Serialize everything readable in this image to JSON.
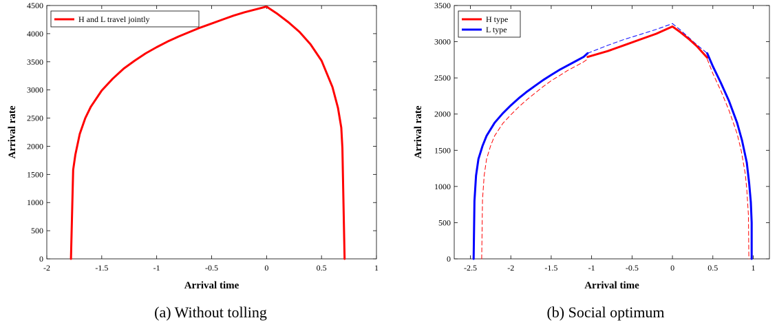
{
  "chart_data": [
    {
      "type": "line",
      "caption": "(a) Without tolling",
      "xlabel": "Arrival time",
      "ylabel": "Arrival rate",
      "xlim": [
        -2,
        1
      ],
      "ylim": [
        0,
        4500
      ],
      "xticks": [
        -2,
        -1.5,
        -1,
        -0.5,
        0,
        0.5,
        1
      ],
      "xtick_labels": [
        "-2",
        "-1.5",
        "-1",
        "-0.5",
        "0",
        "0.5",
        "1"
      ],
      "yticks": [
        0,
        500,
        1000,
        1500,
        2000,
        2500,
        3000,
        3500,
        4000,
        4500
      ],
      "ytick_labels": [
        "0",
        "500",
        "1000",
        "1500",
        "2000",
        "2500",
        "3000",
        "3500",
        "4000",
        "4500"
      ],
      "legend_position": "top-left",
      "series": [
        {
          "name": "H and L travel jointly",
          "color": "#ff0000",
          "style": "solid",
          "x": [
            -1.78,
            -1.76,
            -1.74,
            -1.7,
            -1.65,
            -1.6,
            -1.5,
            -1.4,
            -1.3,
            -1.2,
            -1.1,
            -1.0,
            -0.9,
            -0.8,
            -0.7,
            -0.6,
            -0.5,
            -0.4,
            -0.3,
            -0.2,
            -0.1,
            0.0,
            0.1,
            0.2,
            0.3,
            0.4,
            0.5,
            0.6,
            0.65,
            0.68,
            0.69,
            0.71
          ],
          "y": [
            0,
            1580,
            1850,
            2220,
            2500,
            2700,
            2990,
            3200,
            3380,
            3520,
            3650,
            3760,
            3860,
            3950,
            4030,
            4110,
            4180,
            4250,
            4320,
            4380,
            4430,
            4480,
            4350,
            4200,
            4030,
            3810,
            3520,
            3050,
            2680,
            2330,
            1970,
            0
          ]
        }
      ]
    },
    {
      "type": "line",
      "caption": "(b) Social optimum",
      "xlabel": "Arrival time",
      "ylabel": "Arrival rate",
      "xlim": [
        -2.7,
        1.2
      ],
      "ylim": [
        0,
        3500
      ],
      "xticks": [
        -2.5,
        -2,
        -1.5,
        -1,
        -0.5,
        0,
        0.5,
        1
      ],
      "xtick_labels": [
        "-2.5",
        "-2",
        "-1.5",
        "-1",
        "-0.5",
        "0",
        "0.5",
        "1"
      ],
      "yticks": [
        0,
        500,
        1000,
        1500,
        2000,
        2500,
        3000,
        3500
      ],
      "ytick_labels": [
        "0",
        "500",
        "1000",
        "1500",
        "2000",
        "2500",
        "3000",
        "3500"
      ],
      "legend_position": "top-left",
      "series": [
        {
          "name": "H type",
          "color": "#ff0000",
          "style": "solid",
          "x": [
            -1.05,
            -0.8,
            -0.6,
            -0.4,
            -0.2,
            0.0,
            0.1,
            0.2,
            0.3,
            0.43
          ],
          "y": [
            2790,
            2870,
            2950,
            3030,
            3110,
            3210,
            3130,
            3040,
            2940,
            2780
          ]
        },
        {
          "name": "L type",
          "color": "#0000ff",
          "style": "solid",
          "segments": [
            {
              "x": [
                -2.46,
                -2.45,
                -2.43,
                -2.4,
                -2.35,
                -2.3,
                -2.2,
                -2.1,
                -2.0,
                -1.9,
                -1.8,
                -1.7,
                -1.6,
                -1.5,
                -1.4,
                -1.3,
                -1.2,
                -1.1,
                -1.05
              ],
              "y": [
                0,
                800,
                1150,
                1380,
                1560,
                1700,
                1880,
                2010,
                2120,
                2220,
                2310,
                2390,
                2470,
                2540,
                2610,
                2670,
                2730,
                2790,
                2840
              ]
            },
            {
              "x": [
                0.43,
                0.5,
                0.6,
                0.7,
                0.8,
                0.86,
                0.92,
                0.95,
                0.97,
                0.98,
                0.98
              ],
              "y": [
                2840,
                2660,
                2430,
                2180,
                1880,
                1640,
                1330,
                1040,
                780,
                500,
                0
              ]
            }
          ]
        },
        {
          "name": "",
          "color": "#0000ff",
          "style": "dashed",
          "x": [
            -1.05,
            -0.8,
            -0.6,
            -0.4,
            -0.2,
            0.0,
            0.1,
            0.2,
            0.3,
            0.43
          ],
          "y": [
            2840,
            2950,
            3030,
            3100,
            3170,
            3250,
            3160,
            3060,
            2960,
            2840
          ]
        },
        {
          "name": "",
          "color": "#ff0000",
          "style": "dashed",
          "segments": [
            {
              "x": [
                -2.36,
                -2.35,
                -2.33,
                -2.3,
                -2.25,
                -2.2,
                -2.1,
                -2.0,
                -1.9,
                -1.8,
                -1.7,
                -1.6,
                -1.5,
                -1.4,
                -1.3,
                -1.2,
                -1.1,
                -1.05
              ],
              "y": [
                0,
                820,
                1150,
                1380,
                1560,
                1700,
                1870,
                1990,
                2100,
                2200,
                2290,
                2380,
                2460,
                2530,
                2600,
                2660,
                2720,
                2760
              ]
            },
            {
              "x": [
                0.43,
                0.5,
                0.6,
                0.7,
                0.8,
                0.85,
                0.9,
                0.92,
                0.94,
                0.945
              ],
              "y": [
                2760,
                2560,
                2320,
                2050,
                1730,
                1500,
                1180,
                960,
                600,
                0
              ]
            }
          ]
        }
      ]
    }
  ]
}
